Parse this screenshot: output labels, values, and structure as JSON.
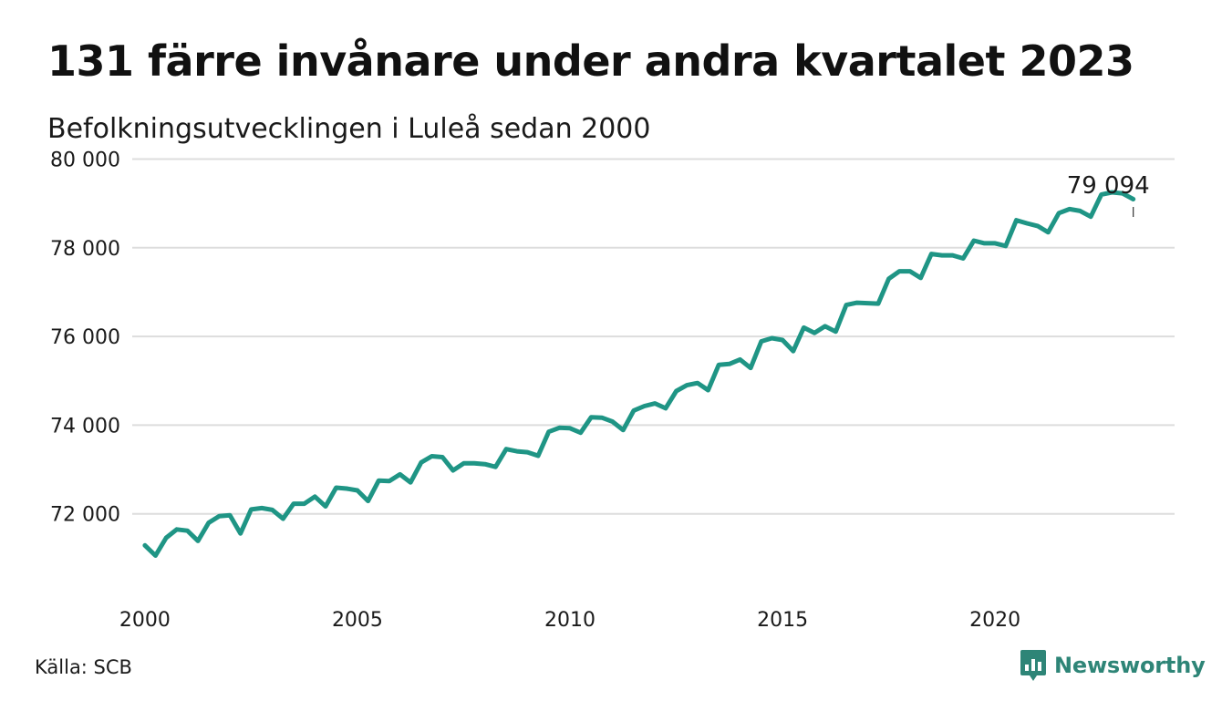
{
  "header": {
    "title": "131 färre invånare under andra kvartalet 2023",
    "subtitle": "Befolkningsutvecklingen i Luleå sedan 2000"
  },
  "footer": {
    "source": "Källa: SCB",
    "brand_name": "Newsworthy",
    "brand_icon": "newsworthy-logo-icon"
  },
  "colors": {
    "line": "#1f9585",
    "grid": "#dddddd",
    "brand": "#2e8577"
  },
  "chart_data": {
    "type": "line",
    "title": "131 färre invånare under andra kvartalet 2023",
    "subtitle": "Befolkningsutvecklingen i Luleå sedan 2000",
    "xlabel": "",
    "ylabel": "",
    "xlim": [
      1999.96,
      2023.45
    ],
    "ylim": [
      70700,
      80400
    ],
    "x_ticks": [
      2000,
      2005,
      2010,
      2015,
      2020
    ],
    "x_tick_labels": [
      "2000",
      "2005",
      "2010",
      "2015",
      "2020"
    ],
    "y_ticks": [
      72000,
      74000,
      76000,
      78000,
      80000
    ],
    "y_tick_labels": [
      "72 000",
      "74 000",
      "76 000",
      "78 000",
      "80 000"
    ],
    "grid": true,
    "legend": "none",
    "annotation": {
      "x": 2023.25,
      "y": 79094,
      "label": "79 094"
    },
    "series": [
      {
        "x": [
          2000.0,
          2000.25,
          2000.5,
          2000.75,
          2001.0,
          2001.25,
          2001.5,
          2001.75,
          2002.0,
          2002.25,
          2002.5,
          2002.75,
          2003.0,
          2003.25,
          2003.5,
          2003.75,
          2004.0,
          2004.25,
          2004.5,
          2004.75,
          2005.0,
          2005.25,
          2005.5,
          2005.75,
          2006.0,
          2006.25,
          2006.5,
          2006.75,
          2007.0,
          2007.25,
          2007.5,
          2007.75,
          2008.0,
          2008.25,
          2008.5,
          2008.75,
          2009.0,
          2009.25,
          2009.5,
          2009.75,
          2010.0,
          2010.25,
          2010.5,
          2010.75,
          2011.0,
          2011.25,
          2011.5,
          2011.75,
          2012.0,
          2012.25,
          2012.5,
          2012.75,
          2013.0,
          2013.25,
          2013.5,
          2013.75,
          2014.0,
          2014.25,
          2014.5,
          2014.75,
          2015.0,
          2015.25,
          2015.5,
          2015.75,
          2016.0,
          2016.25,
          2016.5,
          2016.75,
          2017.0,
          2017.25,
          2017.5,
          2017.75,
          2018.0,
          2018.25,
          2018.5,
          2018.75,
          2019.0,
          2019.25,
          2019.5,
          2019.75,
          2020.0,
          2020.25,
          2020.5,
          2020.75,
          2021.0,
          2021.25,
          2021.5,
          2021.75,
          2022.0,
          2022.25,
          2022.5,
          2022.75,
          2023.0,
          2023.25
        ],
        "values": [
          71290,
          71060,
          71460,
          71650,
          71620,
          71390,
          71800,
          71950,
          71970,
          71560,
          72100,
          72130,
          72090,
          71890,
          72230,
          72230,
          72390,
          72170,
          72590,
          72570,
          72530,
          72290,
          72750,
          72740,
          72890,
          72710,
          73160,
          73300,
          73280,
          72980,
          73140,
          73140,
          73120,
          73060,
          73460,
          73410,
          73390,
          73310,
          73850,
          73940,
          73930,
          73830,
          74180,
          74170,
          74080,
          73890,
          74330,
          74430,
          74490,
          74380,
          74770,
          74900,
          74950,
          74790,
          75360,
          75380,
          75480,
          75290,
          75890,
          75960,
          75920,
          75670,
          76200,
          76080,
          76230,
          76110,
          76710,
          76760,
          76750,
          76740,
          77300,
          77470,
          77470,
          77320,
          77860,
          77830,
          77830,
          77760,
          78160,
          78100,
          78100,
          78040,
          78620,
          78550,
          78490,
          78350,
          78780,
          78870,
          78830,
          78700,
          79200,
          79250,
          79225,
          79094
        ]
      }
    ]
  }
}
